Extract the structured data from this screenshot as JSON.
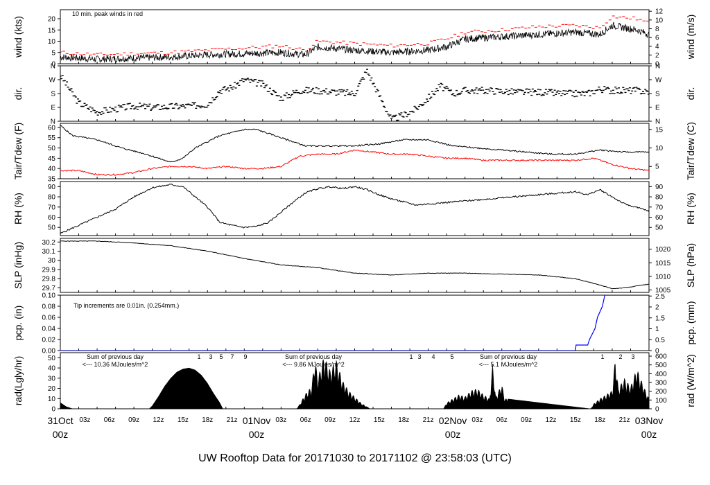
{
  "figure": {
    "title": "UW Rooftop Data for 20171030  to  20171102 @ 23:58:03  (UTC)",
    "title_color": "#0000ff",
    "date_color": "#ff0000",
    "trace_red": "#ff0000",
    "trace_blue": "#0000ff",
    "trace_purple": "#9933cc"
  },
  "chart_data": [
    {
      "id": "wind",
      "type": "line",
      "ylabel": "wind (kts)",
      "ylabel_right": "wind (m/s)",
      "ylim": [
        0,
        24
      ],
      "ylim_right": [
        0,
        12.35
      ],
      "yticks": [
        0,
        5,
        10,
        15,
        20
      ],
      "yticks_right": [
        0,
        2,
        4,
        6,
        8,
        10,
        12
      ],
      "annotation": "10 min. peak winds in red",
      "series": [
        {
          "role": "wind",
          "color": "#000000",
          "x": [
            0,
            6,
            12,
            18,
            24,
            30,
            36,
            40,
            42,
            48,
            54,
            60,
            63,
            66,
            72,
            78,
            84,
            88,
            90,
            94,
            96
          ],
          "values": [
            3,
            2,
            2.5,
            3,
            4,
            4.5,
            5,
            4,
            7.5,
            6,
            5,
            6,
            7.5,
            11,
            12,
            13,
            14,
            13,
            17,
            15,
            13
          ]
        },
        {
          "role": "peak",
          "color": "#ff0000",
          "x": [
            0,
            6,
            12,
            18,
            24,
            30,
            36,
            40,
            42,
            48,
            54,
            60,
            63,
            66,
            72,
            78,
            84,
            88,
            90,
            94,
            96
          ],
          "values": [
            5,
            4,
            4.5,
            5,
            6,
            7,
            8,
            6,
            10,
            9,
            8,
            9,
            11,
            14,
            15,
            16.5,
            17,
            16,
            21,
            20,
            18
          ]
        }
      ]
    },
    {
      "id": "dir",
      "type": "scatter",
      "ylabel": "dir.",
      "ylabel_right": "dir.",
      "ylim": [
        0,
        360
      ],
      "yticks": [
        0,
        90,
        180,
        270,
        360
      ],
      "ytick_labels": [
        "N",
        "E",
        "S",
        "W",
        "N"
      ],
      "series": [
        {
          "role": "direction",
          "color": "#000000",
          "x": [
            0,
            3,
            6,
            9,
            12,
            15,
            18,
            21,
            24,
            26,
            28,
            30,
            33,
            36,
            39,
            42,
            45,
            48,
            50,
            54,
            56,
            58,
            60,
            62,
            64,
            66,
            70,
            74,
            78,
            82,
            86,
            88,
            90,
            94,
            96
          ],
          "values": [
            300,
            120,
            60,
            80,
            100,
            90,
            95,
            100,
            110,
            200,
            220,
            270,
            240,
            150,
            200,
            200,
            190,
            180,
            330,
            10,
            40,
            80,
            150,
            230,
            180,
            200,
            200,
            190,
            190,
            180,
            180,
            210,
            200,
            200,
            190
          ]
        }
      ]
    },
    {
      "id": "temp",
      "type": "line",
      "ylabel": "Tair/Tdew (F)",
      "ylabel_right": "Tair/Tdew (C)",
      "ylim": [
        35,
        62
      ],
      "ylim_right": [
        1.67,
        16.67
      ],
      "yticks": [
        35,
        40,
        45,
        50,
        55,
        60
      ],
      "yticks_right": [
        5,
        10,
        15
      ],
      "series": [
        {
          "role": "air",
          "color": "#000000",
          "x": [
            0,
            2,
            6,
            10,
            14,
            18,
            20,
            22,
            26,
            30,
            32,
            34,
            36,
            40,
            44,
            48,
            52,
            56,
            60,
            64,
            68,
            72,
            76,
            80,
            84,
            88,
            92,
            96
          ],
          "values": [
            61,
            56,
            54,
            50,
            47,
            43,
            45,
            50,
            56,
            59,
            59,
            57,
            55,
            51,
            51,
            51,
            52,
            54,
            54,
            51,
            50,
            49,
            48,
            47,
            47,
            49,
            48,
            48
          ]
        },
        {
          "role": "dew",
          "color": "#ff0000",
          "x": [
            0,
            3,
            6,
            9,
            12,
            15,
            18,
            21,
            24,
            27,
            30,
            33,
            36,
            39,
            42,
            45,
            48,
            51,
            54,
            57,
            60,
            63,
            66,
            69,
            72,
            75,
            78,
            81,
            84,
            87,
            90,
            93,
            96
          ],
          "values": [
            39,
            39,
            37,
            37,
            38,
            40,
            41,
            41,
            40,
            41,
            40,
            40,
            41,
            46,
            47,
            47,
            49,
            48,
            47,
            47,
            46,
            45,
            45,
            44,
            44,
            44,
            44,
            44,
            44,
            45,
            42,
            40,
            39
          ]
        }
      ]
    },
    {
      "id": "rh",
      "type": "line",
      "ylabel": "RH (%)",
      "ylabel_right": "RH (%)",
      "ylim": [
        42,
        95
      ],
      "yticks": [
        50,
        60,
        70,
        80,
        90
      ],
      "series": [
        {
          "role": "rh",
          "color": "#000000",
          "x": [
            0,
            3,
            6,
            9,
            12,
            15,
            18,
            20,
            22,
            24,
            26,
            28,
            30,
            32,
            34,
            36,
            38,
            40,
            42,
            44,
            46,
            48,
            50,
            52,
            54,
            56,
            58,
            60,
            64,
            68,
            72,
            76,
            80,
            84,
            86,
            88,
            92,
            96
          ],
          "values": [
            44,
            52,
            60,
            68,
            80,
            89,
            92,
            90,
            80,
            70,
            55,
            52,
            50,
            51,
            55,
            65,
            75,
            84,
            88,
            90,
            88,
            90,
            87,
            82,
            78,
            75,
            72,
            73,
            75,
            77,
            79,
            81,
            83,
            85,
            82,
            87,
            73,
            66
          ]
        }
      ]
    },
    {
      "id": "slp",
      "type": "line",
      "ylabel": "SLP (inHg)",
      "ylabel_right": "SLP (hPa)",
      "ylim": [
        29.65,
        30.24
      ],
      "ylim_right": [
        1004.1,
        1024.0
      ],
      "yticks": [
        29.7,
        29.8,
        29.9,
        30.0,
        30.1,
        30.2
      ],
      "yticks_right": [
        1005,
        1010,
        1015,
        1020
      ],
      "series": [
        {
          "role": "slp",
          "color": "#000000",
          "x": [
            0,
            6,
            12,
            18,
            24,
            30,
            36,
            42,
            48,
            54,
            60,
            66,
            72,
            78,
            84,
            88,
            90,
            92,
            96
          ],
          "values": [
            30.21,
            30.21,
            30.19,
            30.16,
            30.1,
            30.02,
            29.95,
            29.92,
            29.86,
            29.84,
            29.86,
            29.86,
            29.85,
            29.84,
            29.8,
            29.73,
            29.69,
            29.7,
            29.74
          ]
        }
      ]
    },
    {
      "id": "pcp",
      "type": "line",
      "ylabel": "pcp. (in)",
      "ylabel_right": "pcp. (mm)",
      "ylim": [
        0,
        0.1
      ],
      "ylim_right": [
        0,
        2.54
      ],
      "yticks": [
        0.0,
        0.02,
        0.04,
        0.06,
        0.08,
        0.1
      ],
      "ytick_labels": [
        "0.00",
        "0.02",
        "0.04",
        "0.06",
        "0.08",
        "0.10"
      ],
      "yticks_right": [
        0,
        0.5,
        1,
        1.5,
        2,
        2.5
      ],
      "annotation": "Tip increments are 0.01in. (0.254mm.)",
      "series": [
        {
          "role": "pcp",
          "color": "#0000ff",
          "x": [
            0,
            84,
            84.1,
            86,
            86.3,
            87.2,
            87.6,
            88.4,
            88.8,
            96
          ],
          "values": [
            0,
            0,
            0.01,
            0.01,
            0.02,
            0.04,
            0.06,
            0.08,
            0.1,
            0.1
          ]
        }
      ]
    },
    {
      "id": "rad",
      "type": "area",
      "ylabel": "rad(Lgly/hr)",
      "ylabel_right": "rad (W/m^2)",
      "ylim": [
        0,
        55
      ],
      "ylim_right": [
        0,
        639.6
      ],
      "yticks": [
        0,
        10,
        20,
        30,
        40,
        50
      ],
      "yticks_right": [
        0,
        100,
        200,
        300,
        400,
        500,
        600
      ],
      "hour_marks": [
        "1",
        "3",
        "5",
        "7",
        "9",
        "1",
        "3",
        "4",
        "5",
        "1",
        "2",
        "3"
      ],
      "daily_sums": [
        {
          "line1": "Sum of previous day",
          "line2": "<--- 10.36 MJoules/m^2"
        },
        {
          "line1": "Sum of previous day",
          "line2": "<--- 9.86 MJoules/m^2"
        },
        {
          "line1": "Sum of previous day",
          "line2": "<--- 5.1 MJoules/m^2"
        }
      ],
      "series": [
        {
          "role": "rad",
          "color": "#000000",
          "x": [
            0,
            1,
            2,
            14.5,
            15,
            16,
            17,
            18,
            19,
            20,
            21,
            22,
            23,
            24,
            25,
            26,
            26.5,
            38.5,
            39,
            40,
            41,
            41.5,
            42,
            43,
            44,
            45,
            46,
            47,
            48,
            49,
            50,
            50.5,
            62.5,
            63,
            64,
            65,
            66,
            67,
            68,
            69,
            70,
            70.5,
            71,
            72,
            72.5,
            86.5,
            87,
            88,
            89,
            90,
            90.5,
            91,
            92,
            93,
            94,
            95,
            96
          ],
          "values": [
            6,
            2,
            0,
            0,
            3,
            12,
            22,
            30,
            36,
            39,
            40,
            38,
            33,
            25,
            15,
            6,
            0,
            0,
            4,
            15,
            22,
            50,
            30,
            52,
            38,
            48,
            28,
            18,
            12,
            6,
            2,
            0,
            0,
            6,
            10,
            14,
            12,
            18,
            20,
            14,
            10,
            44,
            12,
            24,
            10,
            0,
            5,
            10,
            14,
            18,
            50,
            20,
            30,
            22,
            40,
            24,
            10
          ]
        }
      ]
    }
  ],
  "x_axis": {
    "xlim": [
      0,
      96
    ],
    "hour_labels": [
      "03z",
      "06z",
      "09z",
      "12z",
      "15z",
      "18z",
      "21z"
    ],
    "dates": [
      {
        "x": 0,
        "line1": "31Oct",
        "line2": "00z"
      },
      {
        "x": 32,
        "line1": "01Nov",
        "line2": "00z"
      },
      {
        "x": 64,
        "line1": "02Nov",
        "line2": "00z"
      },
      {
        "x": 96,
        "line1": "03Nov",
        "line2": "00z"
      }
    ]
  }
}
